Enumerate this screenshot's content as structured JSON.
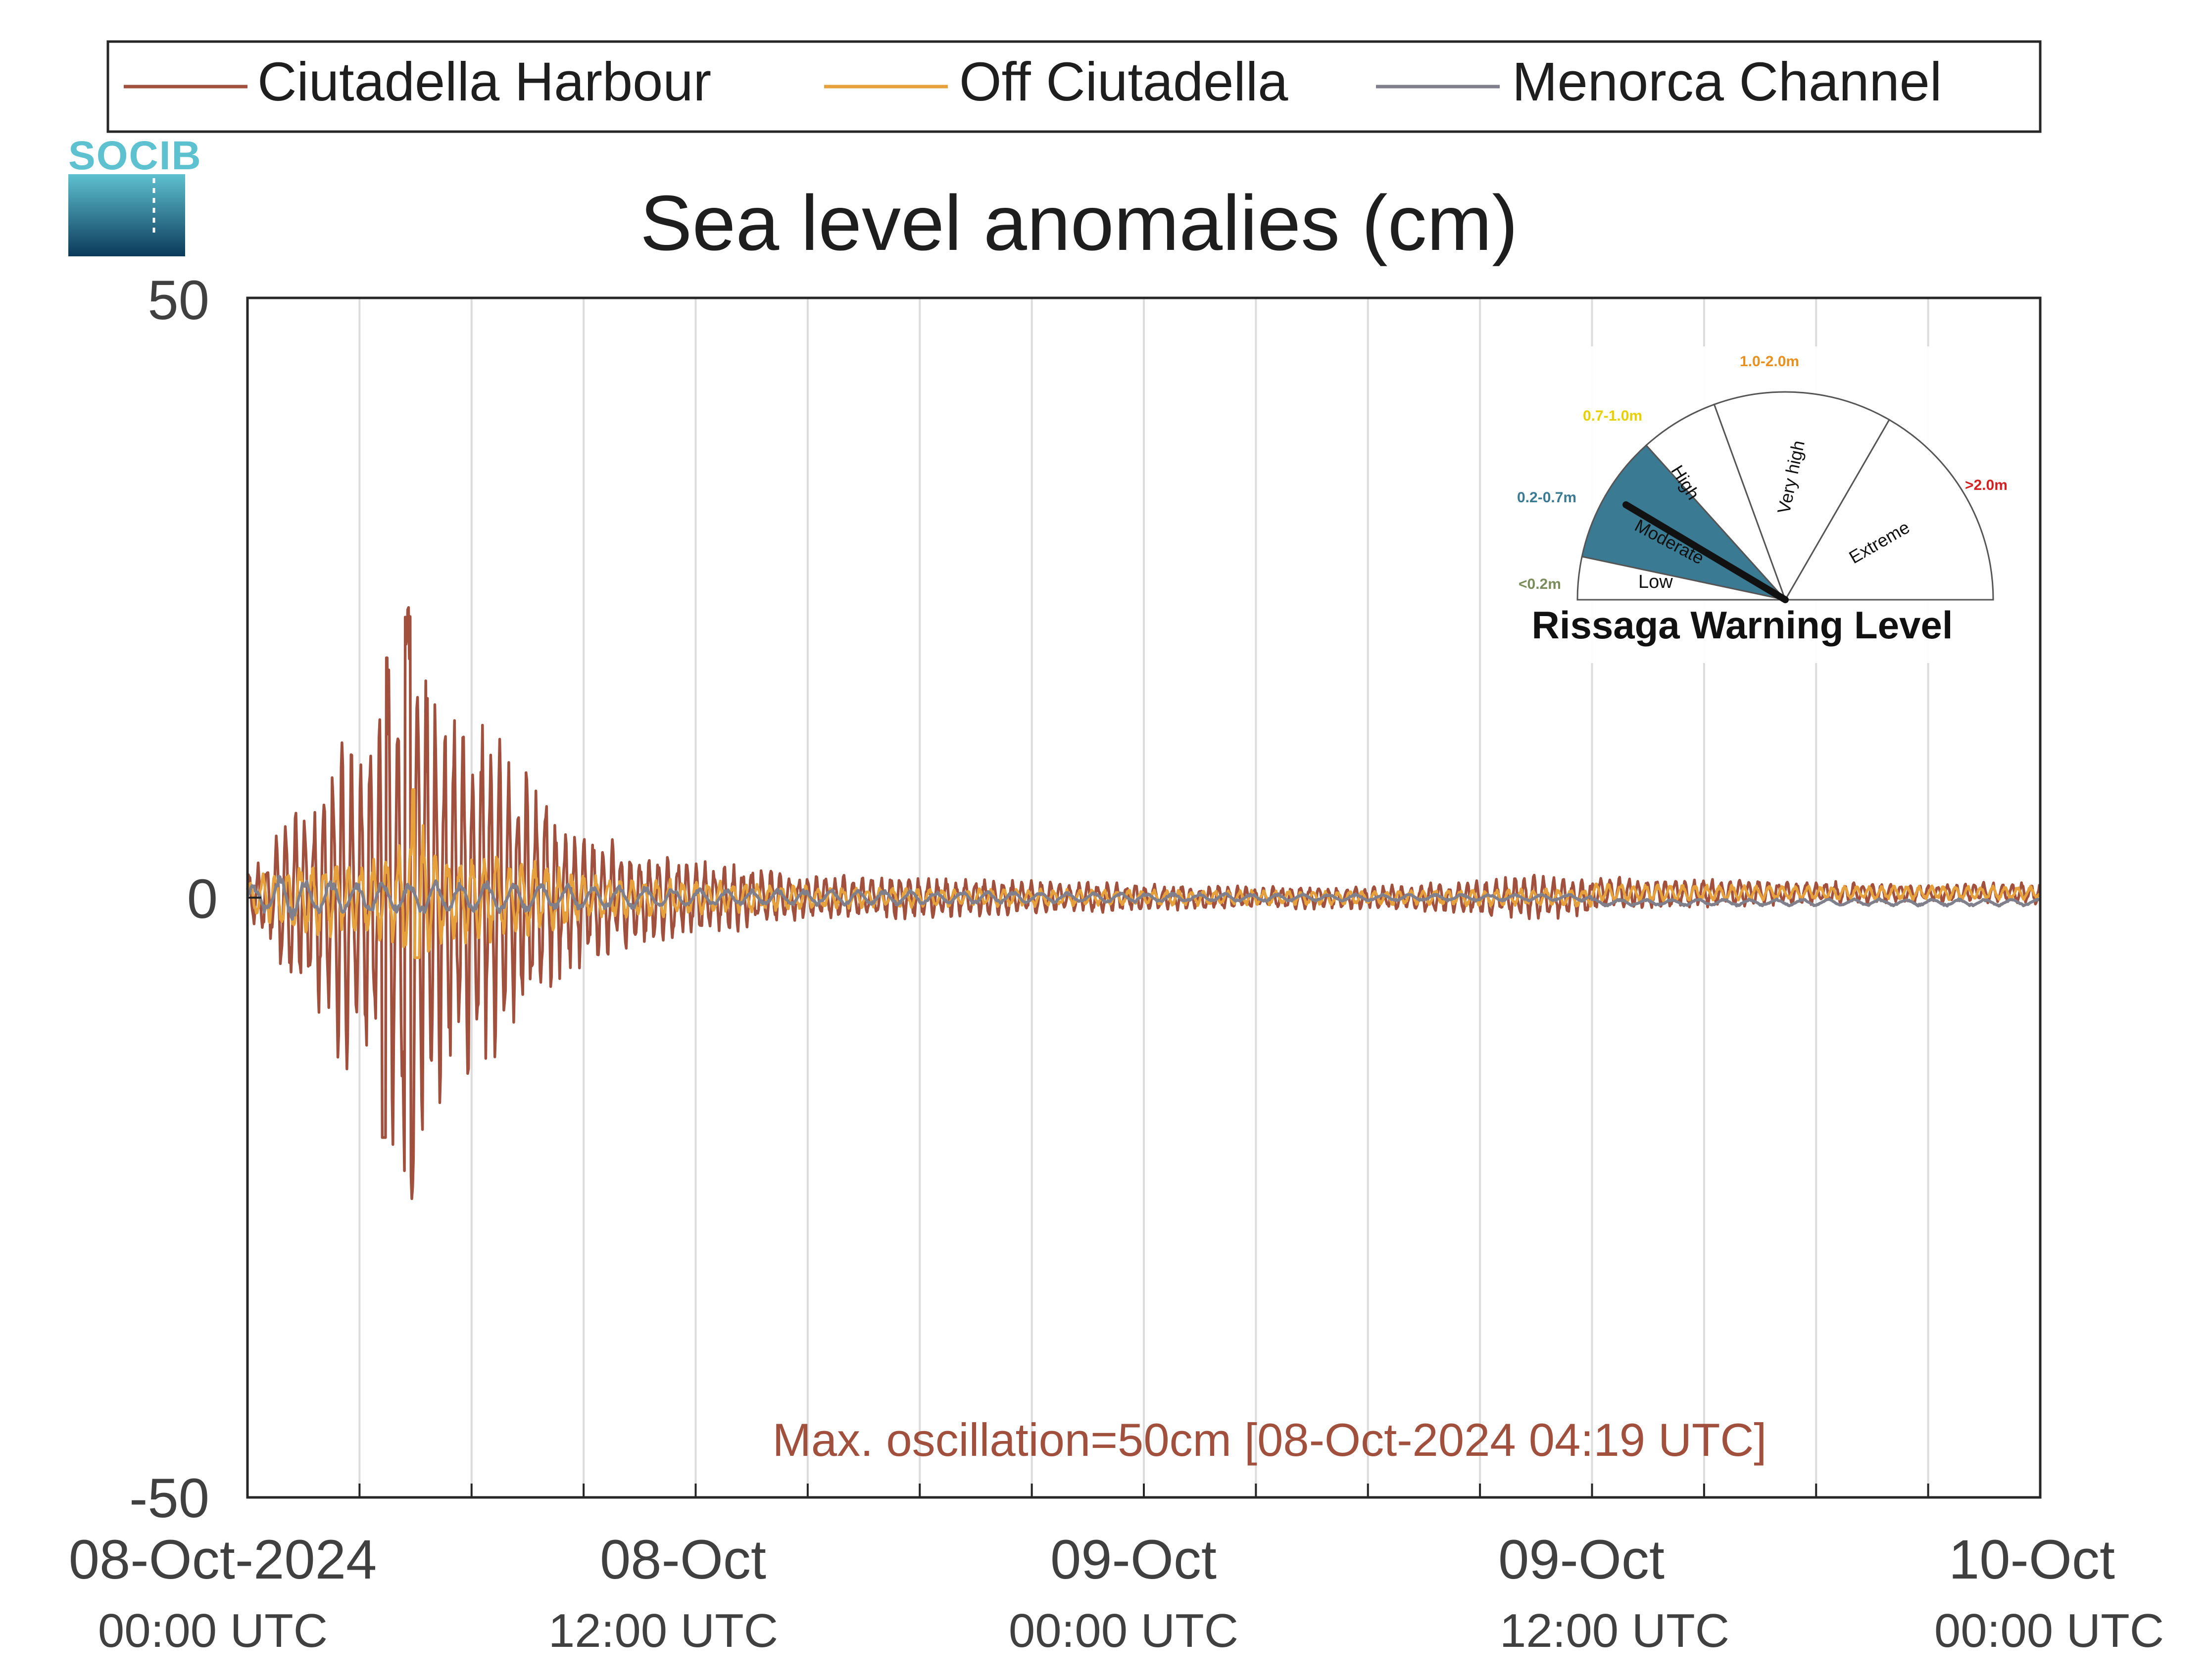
{
  "chart_data": {
    "type": "line",
    "title": "Sea level anomalies (cm)",
    "xlabel": "",
    "ylabel": "",
    "ylim": [
      -50,
      50
    ],
    "yticks": [
      -50,
      0,
      50
    ],
    "xlim_hours": [
      0,
      48
    ],
    "grid": "vertical every 3 h",
    "legend_position": "top",
    "x_ticks": [
      {
        "top": "08-Oct-2024",
        "bottom": "00:00 UTC"
      },
      {
        "top": "08-Oct",
        "bottom": "12:00 UTC"
      },
      {
        "top": "09-Oct",
        "bottom": "00:00 UTC"
      },
      {
        "top": "09-Oct",
        "bottom": "12:00 UTC"
      },
      {
        "top": "10-Oct",
        "bottom": "00:00 UTC"
      }
    ],
    "series": [
      {
        "name": "Ciutadella Harbour",
        "color": "#a0503c",
        "x_hours": [
          0,
          0.5,
          1,
          1.5,
          2,
          2.5,
          3,
          3.5,
          4,
          4.33,
          4.5,
          5,
          5.5,
          6,
          6.5,
          7,
          7.5,
          8,
          8.5,
          9,
          9.5,
          10,
          11,
          12,
          13,
          14,
          15,
          16,
          18,
          20,
          22,
          24,
          27,
          30,
          33,
          34.5,
          36,
          39,
          42,
          45,
          48
        ],
        "envelope_cm": [
          2,
          4,
          7,
          8,
          10,
          15,
          14,
          16,
          24,
          25,
          24,
          20,
          17,
          16,
          15,
          13,
          12,
          9,
          7,
          6,
          5.5,
          4.5,
          4,
          3.5,
          3,
          2.5,
          2,
          2,
          1.8,
          1.6,
          1.4,
          1.2,
          1,
          1,
          1.5,
          2,
          1.5,
          1.2,
          1,
          0.8,
          1
        ],
        "max_oscillation_cm": 50,
        "min_cm": -27,
        "max_cm": 24.5
      },
      {
        "name": "Off Ciutadella",
        "color": "#e6a03c",
        "x_hours": [
          0,
          1,
          2,
          3,
          4,
          4.5,
          5,
          6,
          7,
          8,
          9,
          10,
          12,
          15,
          18,
          24,
          30,
          36,
          42,
          48
        ],
        "envelope_cm": [
          1.5,
          3,
          3.5,
          3,
          4,
          8,
          4,
          4,
          3.5,
          3,
          2,
          1.8,
          1.5,
          1,
          0.8,
          0.7,
          0.6,
          0.8,
          0.6,
          0.6
        ],
        "max_cm": 9
      },
      {
        "name": "Menorca Channel",
        "color": "#80808c",
        "x_hours": [
          0,
          1,
          2,
          4,
          6,
          8,
          10,
          12,
          18,
          24,
          30,
          36,
          42,
          48
        ],
        "envelope_cm": [
          1,
          2,
          1.5,
          1.5,
          1.5,
          1.2,
          1,
          0.8,
          0.6,
          0.4,
          0.3,
          0.3,
          0.3,
          0.3
        ],
        "max_cm": 3
      }
    ],
    "annotation": "Max. oscillation=50cm [08-Oct-2024 04:19 UTC]",
    "annotation_color": "#a0503c"
  },
  "logo": {
    "text": "SOCIB"
  },
  "warning_gauge": {
    "title": "Rissaga Warning Level",
    "current_level": "Moderate",
    "levels": [
      {
        "name": "Low",
        "range": "<0.2m",
        "color": "#7a8c5a"
      },
      {
        "name": "Moderate",
        "range": "0.2-0.7m",
        "color": "#3a7a93"
      },
      {
        "name": "High",
        "range": "0.7-1.0m",
        "color": "#e8d000"
      },
      {
        "name": "Very high",
        "range": "1.0-2.0m",
        "color": "#e89020"
      },
      {
        "name": "Extreme",
        "range": ">2.0m",
        "color": "#d42020"
      }
    ]
  }
}
